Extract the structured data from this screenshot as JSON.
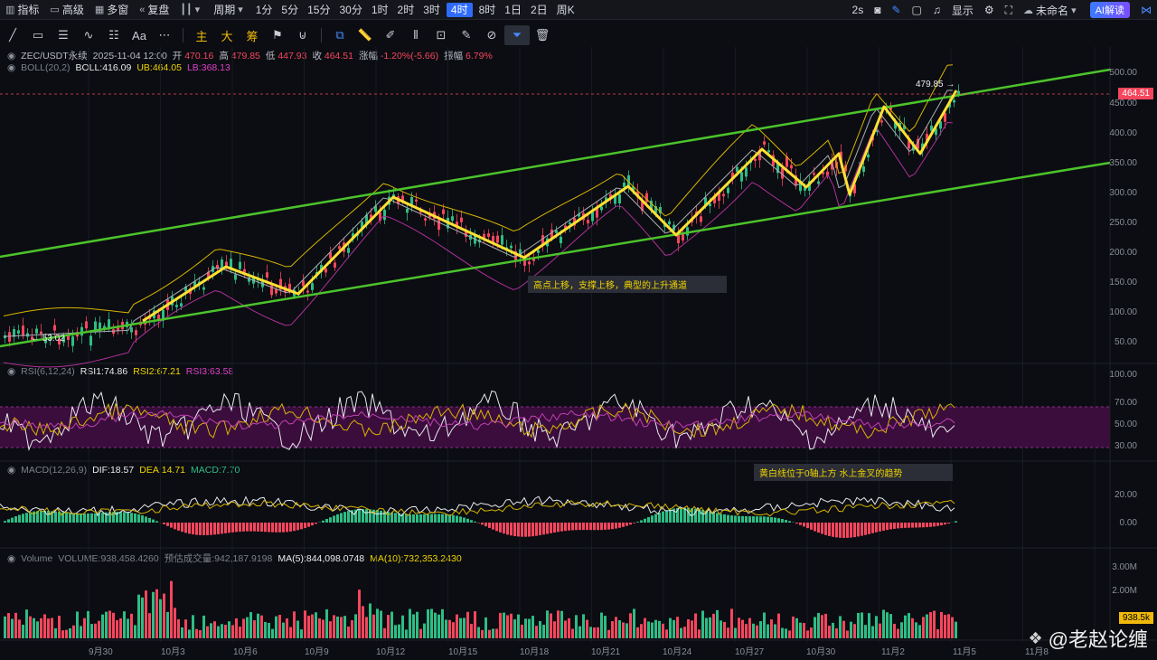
{
  "toolbar": {
    "indicators": "指标",
    "advanced": "高级",
    "multiwindow": "多窗",
    "replay": "复盘",
    "period": "周期",
    "periods": [
      "1分",
      "5分",
      "15分",
      "30分",
      "1时",
      "2时",
      "3时",
      "4时",
      "8时",
      "1日",
      "2日",
      "周K"
    ],
    "active_period": "4时",
    "refresh": "2s",
    "display": "显示",
    "unnamed": "未命名",
    "ai": "AI解读"
  },
  "drawing_tools": {
    "text_tool": "Aa",
    "main": "主",
    "big": "大",
    "chips": "筹"
  },
  "ohlc": {
    "symbol": "ZEC/USDT永续",
    "time": "2025-11-04 12:00",
    "open_label": "开",
    "open": "470.16",
    "high_label": "高",
    "high": "479.85",
    "low_label": "低",
    "low": "447.93",
    "close_label": "收",
    "close": "464.51",
    "change_label": "涨幅",
    "change": "-1.20%(-5.66)",
    "amp_label": "振幅",
    "amp": "6.79%"
  },
  "boll": {
    "name": "BOLL(20,2)",
    "boll": "BOLL:416.09",
    "ub": "UB:464.05",
    "lb": "LB:368.13"
  },
  "rsi": {
    "name": "RSI(6,12,24)",
    "rsi1": "RSI1:74.86",
    "rsi2": "RSI2:67.21",
    "rsi3": "RSI3:63.58"
  },
  "macd": {
    "name": "MACD(12,26,9)",
    "dif": "DIF:18.57",
    "dea": "DEA:14.71",
    "macd": "MACD:7.70"
  },
  "volume": {
    "name": "Volume",
    "volume": "VOLUME:938,458.4260",
    "est": "预估成交量:942,187.9198",
    "ma5": "MA(5):844,098.0748",
    "ma10": "MA(10):732,353.2430"
  },
  "annotations": {
    "channel": "高点上移，支撑上移，典型的上升通道",
    "macd_note": "黄白线位于0轴上方 水上金叉的趋势"
  },
  "price_axis": [
    "500.00",
    "450.00",
    "400.00",
    "350.00",
    "300.00",
    "250.00",
    "200.00",
    "150.00",
    "100.00",
    "50.00"
  ],
  "last_price": "464.51",
  "high_marker": "479.85",
  "low_marker": "53.02",
  "rsi_axis": [
    "100.00",
    "70.00",
    "50.00",
    "30.00"
  ],
  "macd_axis": [
    "20.00",
    "0.00"
  ],
  "vol_axis": [
    "3.00M",
    "2.00M"
  ],
  "last_volume": "938.5k",
  "x_axis": [
    "9月30",
    "10月3",
    "10月6",
    "10月9",
    "10月12",
    "10月15",
    "10月18",
    "10月21",
    "10月24",
    "10月27",
    "10月30",
    "11月2",
    "11月5",
    "11月8"
  ],
  "watermark": "@老赵论缠",
  "colors": {
    "up": "#2ebd85",
    "down": "#f6465d",
    "channel": "#4cc32b",
    "zigzag": "#ffe033",
    "accent": "#2f6bff"
  }
}
